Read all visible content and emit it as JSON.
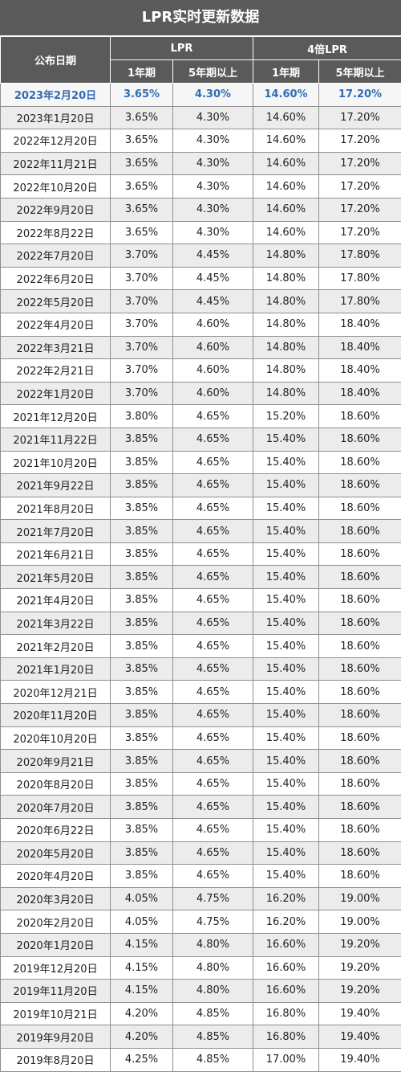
{
  "title": "LPR实时更新数据",
  "header": {
    "date": "公布日期",
    "group_lpr": "LPR",
    "group_4x": "4倍LPR",
    "lpr_1y": "1年期",
    "lpr_5y": "5年期以上",
    "x4_1y": "1年期",
    "x4_5y": "5年期以上"
  },
  "rows": [
    [
      "2023年2月20日",
      "3.65%",
      "4.30%",
      "14.60%",
      "17.20%"
    ],
    [
      "2023年1月20日",
      "3.65%",
      "4.30%",
      "14.60%",
      "17.20%"
    ],
    [
      "2022年12月20日",
      "3.65%",
      "4.30%",
      "14.60%",
      "17.20%"
    ],
    [
      "2022年11月21日",
      "3.65%",
      "4.30%",
      "14.60%",
      "17.20%"
    ],
    [
      "2022年10月20日",
      "3.65%",
      "4.30%",
      "14.60%",
      "17.20%"
    ],
    [
      "2022年9月20日",
      "3.65%",
      "4.30%",
      "14.60%",
      "17.20%"
    ],
    [
      "2022年8月22日",
      "3.65%",
      "4.30%",
      "14.60%",
      "17.20%"
    ],
    [
      "2022年7月20日",
      "3.70%",
      "4.45%",
      "14.80%",
      "17.80%"
    ],
    [
      "2022年6月20日",
      "3.70%",
      "4.45%",
      "14.80%",
      "17.80%"
    ],
    [
      "2022年5月20日",
      "3.70%",
      "4.45%",
      "14.80%",
      "17.80%"
    ],
    [
      "2022年4月20日",
      "3.70%",
      "4.60%",
      "14.80%",
      "18.40%"
    ],
    [
      "2022年3月21日",
      "3.70%",
      "4.60%",
      "14.80%",
      "18.40%"
    ],
    [
      "2022年2月21日",
      "3.70%",
      "4.60%",
      "14.80%",
      "18.40%"
    ],
    [
      "2022年1月20日",
      "3.70%",
      "4.60%",
      "14.80%",
      "18.40%"
    ],
    [
      "2021年12月20日",
      "3.80%",
      "4.65%",
      "15.20%",
      "18.60%"
    ],
    [
      "2021年11月22日",
      "3.85%",
      "4.65%",
      "15.40%",
      "18.60%"
    ],
    [
      "2021年10月20日",
      "3.85%",
      "4.65%",
      "15.40%",
      "18.60%"
    ],
    [
      "2021年9月22日",
      "3.85%",
      "4.65%",
      "15.40%",
      "18.60%"
    ],
    [
      "2021年8月20日",
      "3.85%",
      "4.65%",
      "15.40%",
      "18.60%"
    ],
    [
      "2021年7月20日",
      "3.85%",
      "4.65%",
      "15.40%",
      "18.60%"
    ],
    [
      "2021年6月21日",
      "3.85%",
      "4.65%",
      "15.40%",
      "18.60%"
    ],
    [
      "2021年5月20日",
      "3.85%",
      "4.65%",
      "15.40%",
      "18.60%"
    ],
    [
      "2021年4月20日",
      "3.85%",
      "4.65%",
      "15.40%",
      "18.60%"
    ],
    [
      "2021年3月22日",
      "3.85%",
      "4.65%",
      "15.40%",
      "18.60%"
    ],
    [
      "2021年2月20日",
      "3.85%",
      "4.65%",
      "15.40%",
      "18.60%"
    ],
    [
      "2021年1月20日",
      "3.85%",
      "4.65%",
      "15.40%",
      "18.60%"
    ],
    [
      "2020年12月21日",
      "3.85%",
      "4.65%",
      "15.40%",
      "18.60%"
    ],
    [
      "2020年11月20日",
      "3.85%",
      "4.65%",
      "15.40%",
      "18.60%"
    ],
    [
      "2020年10月20日",
      "3.85%",
      "4.65%",
      "15.40%",
      "18.60%"
    ],
    [
      "2020年9月21日",
      "3.85%",
      "4.65%",
      "15.40%",
      "18.60%"
    ],
    [
      "2020年8月20日",
      "3.85%",
      "4.65%",
      "15.40%",
      "18.60%"
    ],
    [
      "2020年7月20日",
      "3.85%",
      "4.65%",
      "15.40%",
      "18.60%"
    ],
    [
      "2020年6月22日",
      "3.85%",
      "4.65%",
      "15.40%",
      "18.60%"
    ],
    [
      "2020年5月20日",
      "3.85%",
      "4.65%",
      "15.40%",
      "18.60%"
    ],
    [
      "2020年4月20日",
      "3.85%",
      "4.65%",
      "15.40%",
      "18.60%"
    ],
    [
      "2020年3月20日",
      "4.05%",
      "4.75%",
      "16.20%",
      "19.00%"
    ],
    [
      "2020年2月20日",
      "4.05%",
      "4.75%",
      "16.20%",
      "19.00%"
    ],
    [
      "2020年1月20日",
      "4.15%",
      "4.80%",
      "16.60%",
      "19.20%"
    ],
    [
      "2019年12月20日",
      "4.15%",
      "4.80%",
      "16.60%",
      "19.20%"
    ],
    [
      "2019年11月20日",
      "4.15%",
      "4.80%",
      "16.60%",
      "19.20%"
    ],
    [
      "2019年10月21日",
      "4.20%",
      "4.85%",
      "16.80%",
      "19.40%"
    ],
    [
      "2019年9月20日",
      "4.20%",
      "4.85%",
      "16.80%",
      "19.40%"
    ],
    [
      "2019年8月20日",
      "4.25%",
      "4.85%",
      "17.00%",
      "19.40%"
    ]
  ],
  "colors": {
    "header_bg": "#5a5a5a",
    "highlight_text": "#2f6db3",
    "stripe_bg": "#ececec"
  }
}
